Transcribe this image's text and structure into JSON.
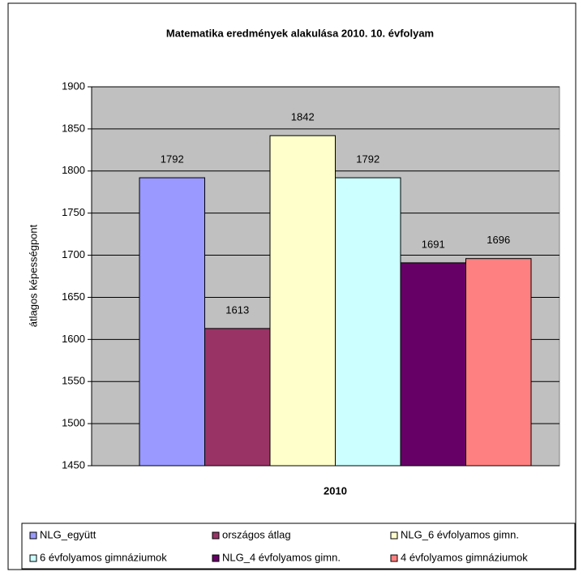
{
  "chart_data": {
    "type": "bar",
    "title": "Matematika eredmények alakulása 2010. 10. évfolyam",
    "y_label": "átlagos képességpont",
    "categories": [
      "2010"
    ],
    "series": [
      {
        "name": "NLG_együtt",
        "color": "#9999ff",
        "values": [
          1792
        ]
      },
      {
        "name": "országos átlag",
        "color": "#993366",
        "values": [
          1613
        ]
      },
      {
        "name": "NLG_6 évfolyamos gimn.",
        "color": "#ffffcc",
        "values": [
          1842
        ]
      },
      {
        "name": "6 évfolyamos gimnáziumok",
        "color": "#ccffff",
        "values": [
          1792
        ]
      },
      {
        "name": "NLG_4 évfolyamos gimn.",
        "color": "#660066",
        "values": [
          1691
        ]
      },
      {
        "name": "4 évfolyamos gimnáziumok",
        "color": "#ff8080",
        "values": [
          1696
        ]
      }
    ],
    "ylim": [
      1450,
      1900
    ],
    "yticks": [
      1450,
      1500,
      1550,
      1600,
      1650,
      1700,
      1750,
      1800,
      1850,
      1900
    ],
    "grid": true,
    "legend": "bottom",
    "plot_background": "#c0c0c0"
  }
}
